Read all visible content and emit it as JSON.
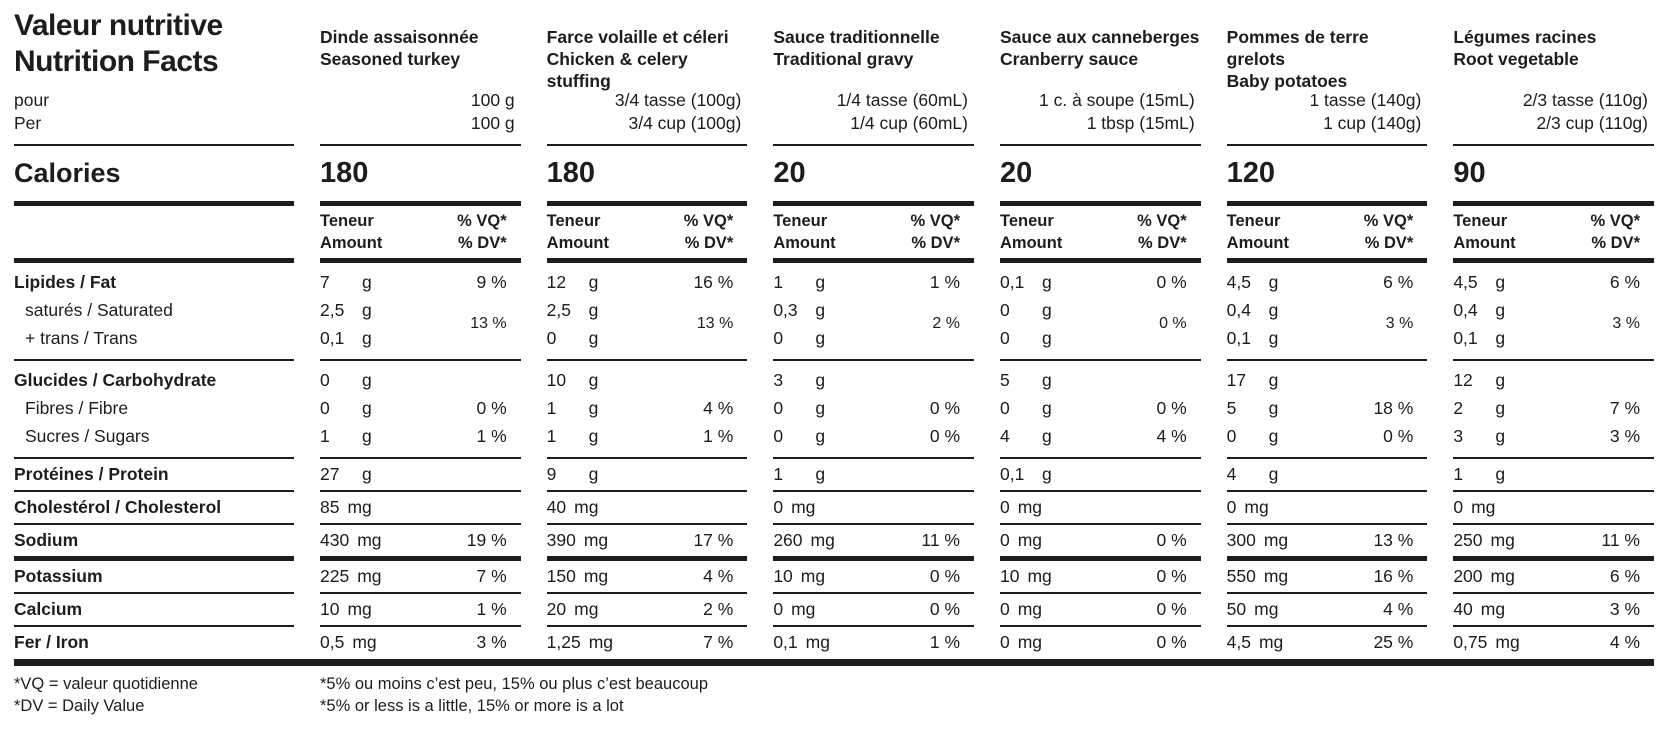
{
  "title": {
    "fr": "Valeur nutritive",
    "en": "Nutrition Facts"
  },
  "per": {
    "fr": "pour",
    "en": "Per"
  },
  "calories_label": "Calories",
  "col_header": {
    "amount_fr": "Teneur",
    "amount_en": "Amount",
    "dv_fr": "% VQ*",
    "dv_en": "% DV*"
  },
  "rows": {
    "fat": "Lipides / Fat",
    "saturated": "saturés / Saturated",
    "trans": "+ trans / Trans",
    "carb": "Glucides / Carbohydrate",
    "fibre": "Fibres / Fibre",
    "sugars": "Sucres / Sugars",
    "protein": "Protéines / Protein",
    "cholesterol": "Cholestérol / Cholesterol",
    "sodium": "Sodium",
    "potassium": "Potassium",
    "calcium": "Calcium",
    "iron": "Fer / Iron"
  },
  "footnotes": {
    "vq_fr": "*VQ = valeur quotidienne",
    "dv_en": "*DV = Daily Value",
    "pct_fr": "*5% ou moins c’est peu, 15% ou plus c’est beaucoup",
    "pct_en": "*5% or less is a little, 15% or more is a lot"
  },
  "columns": [
    {
      "name_fr": "Dinde assaisonnée",
      "name_en": "Seasoned turkey",
      "serving_fr": "100 g",
      "serving_en": "100 g",
      "calories": "180",
      "fat": {
        "amt": "7",
        "unit": "g",
        "dv": "9 %"
      },
      "saturated": {
        "amt": "2,5",
        "unit": "g"
      },
      "trans": {
        "amt": "0,1",
        "unit": "g"
      },
      "sat_trans_dv": "13 %",
      "carb": {
        "amt": "0",
        "unit": "g",
        "dv": ""
      },
      "fibre": {
        "amt": "0",
        "unit": "g",
        "dv": "0 %"
      },
      "sugars": {
        "amt": "1",
        "unit": "g",
        "dv": "1 %"
      },
      "protein": {
        "amt": "27",
        "unit": "g"
      },
      "cholesterol": {
        "amt": "85",
        "unit": "mg"
      },
      "sodium": {
        "amt": "430",
        "unit": "mg",
        "dv": "19 %"
      },
      "potassium": {
        "amt": "225",
        "unit": "mg",
        "dv": "7 %"
      },
      "calcium": {
        "amt": "10",
        "unit": "mg",
        "dv": "1 %"
      },
      "iron": {
        "amt": "0,5",
        "unit": "mg",
        "dv": "3 %"
      }
    },
    {
      "name_fr": "Farce volaille et céleri",
      "name_en": "Chicken & celery stuffing",
      "serving_fr": "3/4 tasse (100g)",
      "serving_en": "3/4 cup (100g)",
      "calories": "180",
      "fat": {
        "amt": "12",
        "unit": "g",
        "dv": "16 %"
      },
      "saturated": {
        "amt": "2,5",
        "unit": "g"
      },
      "trans": {
        "amt": "0",
        "unit": "g"
      },
      "sat_trans_dv": "13 %",
      "carb": {
        "amt": "10",
        "unit": "g",
        "dv": ""
      },
      "fibre": {
        "amt": "1",
        "unit": "g",
        "dv": "4 %"
      },
      "sugars": {
        "amt": "1",
        "unit": "g",
        "dv": "1 %"
      },
      "protein": {
        "amt": "9",
        "unit": "g"
      },
      "cholesterol": {
        "amt": "40",
        "unit": "mg"
      },
      "sodium": {
        "amt": "390",
        "unit": "mg",
        "dv": "17 %"
      },
      "potassium": {
        "amt": "150",
        "unit": "mg",
        "dv": "4 %"
      },
      "calcium": {
        "amt": "20",
        "unit": "mg",
        "dv": "2 %"
      },
      "iron": {
        "amt": "1,25",
        "unit": "mg",
        "dv": "7 %"
      }
    },
    {
      "name_fr": "Sauce traditionnelle",
      "name_en": "Traditional gravy",
      "serving_fr": "1/4 tasse (60mL)",
      "serving_en": "1/4 cup (60mL)",
      "calories": "20",
      "fat": {
        "amt": "1",
        "unit": "g",
        "dv": "1 %"
      },
      "saturated": {
        "amt": "0,3",
        "unit": "g"
      },
      "trans": {
        "amt": "0",
        "unit": "g"
      },
      "sat_trans_dv": "2 %",
      "carb": {
        "amt": "3",
        "unit": "g",
        "dv": ""
      },
      "fibre": {
        "amt": "0",
        "unit": "g",
        "dv": "0 %"
      },
      "sugars": {
        "amt": "0",
        "unit": "g",
        "dv": "0 %"
      },
      "protein": {
        "amt": "1",
        "unit": "g"
      },
      "cholesterol": {
        "amt": "0",
        "unit": "mg"
      },
      "sodium": {
        "amt": "260",
        "unit": "mg",
        "dv": "11 %"
      },
      "potassium": {
        "amt": "10",
        "unit": "mg",
        "dv": "0 %"
      },
      "calcium": {
        "amt": "0",
        "unit": "mg",
        "dv": "0 %"
      },
      "iron": {
        "amt": "0,1",
        "unit": "mg",
        "dv": "1 %"
      }
    },
    {
      "name_fr": "Sauce aux canneberges",
      "name_en": "Cranberry sauce",
      "serving_fr": "1 c. à soupe (15mL)",
      "serving_en": "1 tbsp (15mL)",
      "calories": "20",
      "fat": {
        "amt": "0,1",
        "unit": "g",
        "dv": "0 %"
      },
      "saturated": {
        "amt": "0",
        "unit": "g"
      },
      "trans": {
        "amt": "0",
        "unit": "g"
      },
      "sat_trans_dv": "0 %",
      "carb": {
        "amt": "5",
        "unit": "g",
        "dv": ""
      },
      "fibre": {
        "amt": "0",
        "unit": "g",
        "dv": "0 %"
      },
      "sugars": {
        "amt": "4",
        "unit": "g",
        "dv": "4 %"
      },
      "protein": {
        "amt": "0,1",
        "unit": "g"
      },
      "cholesterol": {
        "amt": "0",
        "unit": "mg"
      },
      "sodium": {
        "amt": "0",
        "unit": "mg",
        "dv": "0 %"
      },
      "potassium": {
        "amt": "10",
        "unit": "mg",
        "dv": "0 %"
      },
      "calcium": {
        "amt": "0",
        "unit": "mg",
        "dv": "0 %"
      },
      "iron": {
        "amt": "0",
        "unit": "mg",
        "dv": "0 %"
      }
    },
    {
      "name_fr": "Pommes de terre grelots",
      "name_en": "Baby potatoes",
      "serving_fr": "1 tasse (140g)",
      "serving_en": "1 cup (140g)",
      "calories": "120",
      "fat": {
        "amt": "4,5",
        "unit": "g",
        "dv": "6 %"
      },
      "saturated": {
        "amt": "0,4",
        "unit": "g"
      },
      "trans": {
        "amt": "0,1",
        "unit": "g"
      },
      "sat_trans_dv": "3 %",
      "carb": {
        "amt": "17",
        "unit": "g",
        "dv": ""
      },
      "fibre": {
        "amt": "5",
        "unit": "g",
        "dv": "18 %"
      },
      "sugars": {
        "amt": "0",
        "unit": "g",
        "dv": "0 %"
      },
      "protein": {
        "amt": "4",
        "unit": "g"
      },
      "cholesterol": {
        "amt": "0",
        "unit": "mg"
      },
      "sodium": {
        "amt": "300",
        "unit": "mg",
        "dv": "13 %"
      },
      "potassium": {
        "amt": "550",
        "unit": "mg",
        "dv": "16 %"
      },
      "calcium": {
        "amt": "50",
        "unit": "mg",
        "dv": "4 %"
      },
      "iron": {
        "amt": "4,5",
        "unit": "mg",
        "dv": "25 %"
      }
    },
    {
      "name_fr": "Légumes racines",
      "name_en": "Root vegetable",
      "serving_fr": "2/3 tasse (110g)",
      "serving_en": "2/3 cup (110g)",
      "calories": "90",
      "fat": {
        "amt": "4,5",
        "unit": "g",
        "dv": "6 %"
      },
      "saturated": {
        "amt": "0,4",
        "unit": "g"
      },
      "trans": {
        "amt": "0,1",
        "unit": "g"
      },
      "sat_trans_dv": "3 %",
      "carb": {
        "amt": "12",
        "unit": "g",
        "dv": ""
      },
      "fibre": {
        "amt": "2",
        "unit": "g",
        "dv": "7 %"
      },
      "sugars": {
        "amt": "3",
        "unit": "g",
        "dv": "3 %"
      },
      "protein": {
        "amt": "1",
        "unit": "g"
      },
      "cholesterol": {
        "amt": "0",
        "unit": "mg"
      },
      "sodium": {
        "amt": "250",
        "unit": "mg",
        "dv": "11 %"
      },
      "potassium": {
        "amt": "200",
        "unit": "mg",
        "dv": "6 %"
      },
      "calcium": {
        "amt": "40",
        "unit": "mg",
        "dv": "3 %"
      },
      "iron": {
        "amt": "0,75",
        "unit": "mg",
        "dv": "4 %"
      }
    }
  ]
}
